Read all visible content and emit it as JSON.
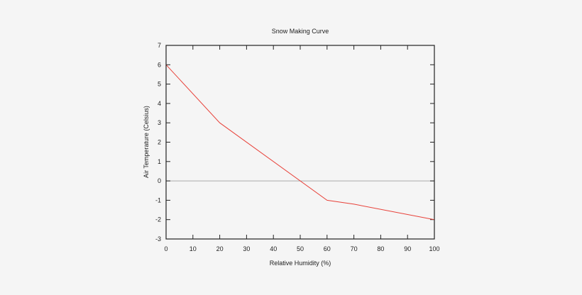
{
  "chart_data": {
    "type": "line",
    "title": "Snow Making Curve",
    "xlabel": "Relative Humidity (%)",
    "ylabel": "Air Temperature (Celsius)",
    "xlim": [
      0,
      100
    ],
    "ylim": [
      -3,
      7
    ],
    "x_ticks": [
      0,
      10,
      20,
      30,
      40,
      50,
      60,
      70,
      80,
      90,
      100
    ],
    "y_ticks": [
      -3,
      -2,
      -1,
      0,
      1,
      2,
      3,
      4,
      5,
      6,
      7
    ],
    "grid": false,
    "legend": null,
    "reference_line": {
      "y": 0,
      "color": "#aaaaaa"
    },
    "series": [
      {
        "name": "Snow Making Curve",
        "color": "#e8423a",
        "x": [
          0,
          20,
          60,
          70,
          100
        ],
        "y": [
          6,
          3,
          -1,
          -1.2,
          -2
        ]
      }
    ]
  },
  "colors": {
    "background": "#f5f5f5",
    "axis": "#222222",
    "line": "#e8423a",
    "zero_line": "#aaaaaa"
  }
}
